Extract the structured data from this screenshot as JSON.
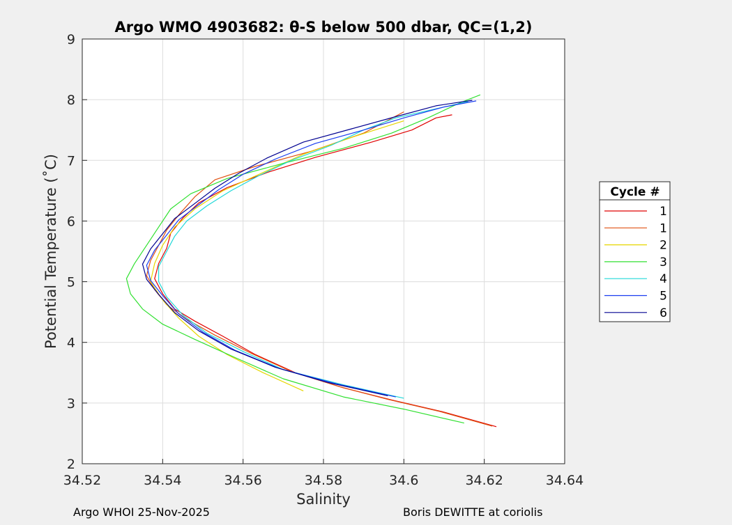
{
  "chart_data": {
    "type": "line",
    "title": "Argo WMO 4903682: θ-S below 500 dbar,  QC=(1,2)",
    "xlabel": "Salinity",
    "ylabel": "Potential Temperature (˚C)",
    "xlim": [
      34.52,
      34.64
    ],
    "ylim": [
      2,
      9
    ],
    "xticks": [
      "34.52",
      "34.54",
      "34.56",
      "34.58",
      "34.6",
      "34.62",
      "34.64"
    ],
    "yticks": [
      "2",
      "3",
      "4",
      "5",
      "6",
      "7",
      "8",
      "9"
    ],
    "grid": true,
    "legend": {
      "title": "Cycle #",
      "placement": "right"
    },
    "series": [
      {
        "name": "1",
        "color": "#e00000",
        "points": [
          [
            34.623,
            2.61
          ],
          [
            34.61,
            2.85
          ],
          [
            34.597,
            3.05
          ],
          [
            34.585,
            3.25
          ],
          [
            34.573,
            3.5
          ],
          [
            34.563,
            3.8
          ],
          [
            34.555,
            4.1
          ],
          [
            34.548,
            4.35
          ],
          [
            34.543,
            4.55
          ],
          [
            34.54,
            4.8
          ],
          [
            34.538,
            5.05
          ],
          [
            34.539,
            5.3
          ],
          [
            34.541,
            5.55
          ],
          [
            34.542,
            5.8
          ],
          [
            34.545,
            6.05
          ],
          [
            34.549,
            6.3
          ],
          [
            34.556,
            6.55
          ],
          [
            34.566,
            6.8
          ],
          [
            34.578,
            7.05
          ],
          [
            34.592,
            7.3
          ],
          [
            34.602,
            7.5
          ],
          [
            34.608,
            7.7
          ],
          [
            34.612,
            7.75
          ]
        ]
      },
      {
        "name": "1",
        "color": "#e05010",
        "points": [
          [
            34.622,
            2.62
          ],
          [
            34.609,
            2.86
          ],
          [
            34.596,
            3.06
          ],
          [
            34.584,
            3.27
          ],
          [
            34.572,
            3.52
          ],
          [
            34.562,
            3.82
          ],
          [
            34.553,
            4.12
          ],
          [
            34.546,
            4.38
          ],
          [
            34.541,
            4.62
          ],
          [
            34.538,
            4.87
          ],
          [
            34.536,
            5.1
          ],
          [
            34.537,
            5.35
          ],
          [
            34.539,
            5.6
          ],
          [
            34.541,
            5.85
          ],
          [
            34.544,
            6.1
          ],
          [
            34.548,
            6.4
          ],
          [
            34.553,
            6.68
          ],
          [
            34.563,
            6.9
          ],
          [
            34.577,
            7.15
          ],
          [
            34.59,
            7.45
          ],
          [
            34.6,
            7.8
          ]
        ]
      },
      {
        "name": "2",
        "color": "#e6d600",
        "points": [
          [
            34.575,
            3.2
          ],
          [
            34.565,
            3.5
          ],
          [
            34.556,
            3.8
          ],
          [
            34.549,
            4.1
          ],
          [
            34.544,
            4.4
          ],
          [
            34.54,
            4.7
          ],
          [
            34.537,
            5.0
          ],
          [
            34.538,
            5.3
          ],
          [
            34.54,
            5.6
          ],
          [
            34.543,
            5.9
          ],
          [
            34.548,
            6.2
          ],
          [
            34.555,
            6.5
          ],
          [
            34.565,
            6.8
          ],
          [
            34.575,
            7.1
          ],
          [
            34.588,
            7.4
          ],
          [
            34.6,
            7.65
          ]
        ]
      },
      {
        "name": "3",
        "color": "#30e030",
        "points": [
          [
            34.615,
            2.67
          ],
          [
            34.6,
            2.9
          ],
          [
            34.585,
            3.1
          ],
          [
            34.57,
            3.4
          ],
          [
            34.558,
            3.75
          ],
          [
            34.548,
            4.05
          ],
          [
            34.54,
            4.3
          ],
          [
            34.535,
            4.55
          ],
          [
            34.532,
            4.8
          ],
          [
            34.531,
            5.05
          ],
          [
            34.533,
            5.3
          ],
          [
            34.536,
            5.6
          ],
          [
            34.539,
            5.9
          ],
          [
            34.542,
            6.2
          ],
          [
            34.547,
            6.45
          ],
          [
            34.556,
            6.7
          ],
          [
            34.57,
            6.95
          ],
          [
            34.585,
            7.2
          ],
          [
            34.597,
            7.45
          ],
          [
            34.606,
            7.7
          ],
          [
            34.614,
            7.95
          ],
          [
            34.619,
            8.08
          ]
        ]
      },
      {
        "name": "4",
        "color": "#20d8d8",
        "points": [
          [
            34.6,
            3.08
          ],
          [
            34.585,
            3.3
          ],
          [
            34.57,
            3.55
          ],
          [
            34.56,
            3.85
          ],
          [
            34.551,
            4.15
          ],
          [
            34.545,
            4.45
          ],
          [
            34.541,
            4.75
          ],
          [
            34.539,
            5.0
          ],
          [
            34.539,
            5.25
          ],
          [
            34.541,
            5.5
          ],
          [
            34.543,
            5.75
          ],
          [
            34.546,
            6.0
          ],
          [
            34.551,
            6.25
          ],
          [
            34.557,
            6.5
          ],
          [
            34.564,
            6.75
          ],
          [
            34.572,
            7.0
          ],
          [
            34.582,
            7.25
          ],
          [
            34.59,
            7.5
          ],
          [
            34.598,
            7.7
          ],
          [
            34.608,
            7.85
          ],
          [
            34.616,
            7.97
          ]
        ]
      },
      {
        "name": "5",
        "color": "#1a3cf0",
        "points": [
          [
            34.598,
            3.1
          ],
          [
            34.583,
            3.32
          ],
          [
            34.569,
            3.57
          ],
          [
            34.558,
            3.87
          ],
          [
            34.55,
            4.17
          ],
          [
            34.544,
            4.47
          ],
          [
            34.54,
            4.77
          ],
          [
            34.537,
            5.02
          ],
          [
            34.536,
            5.27
          ],
          [
            34.538,
            5.52
          ],
          [
            34.541,
            5.77
          ],
          [
            34.544,
            6.02
          ],
          [
            34.549,
            6.27
          ],
          [
            34.554,
            6.52
          ],
          [
            34.56,
            6.77
          ],
          [
            34.568,
            7.02
          ],
          [
            34.578,
            7.28
          ],
          [
            34.59,
            7.5
          ],
          [
            34.6,
            7.7
          ],
          [
            34.61,
            7.88
          ],
          [
            34.618,
            7.98
          ]
        ]
      },
      {
        "name": "6",
        "color": "#000090",
        "points": [
          [
            34.596,
            3.12
          ],
          [
            34.581,
            3.34
          ],
          [
            34.568,
            3.59
          ],
          [
            34.557,
            3.89
          ],
          [
            34.549,
            4.19
          ],
          [
            34.543,
            4.49
          ],
          [
            34.539,
            4.79
          ],
          [
            34.536,
            5.04
          ],
          [
            34.535,
            5.29
          ],
          [
            34.537,
            5.54
          ],
          [
            34.54,
            5.79
          ],
          [
            34.543,
            6.04
          ],
          [
            34.548,
            6.29
          ],
          [
            34.553,
            6.54
          ],
          [
            34.559,
            6.79
          ],
          [
            34.566,
            7.04
          ],
          [
            34.575,
            7.3
          ],
          [
            34.587,
            7.52
          ],
          [
            34.598,
            7.72
          ],
          [
            34.608,
            7.9
          ],
          [
            34.617,
            7.99
          ]
        ]
      }
    ]
  },
  "footer": {
    "left": "Argo WHOI 25-Nov-2025",
    "right": "Boris DEWITTE at coriolis"
  }
}
